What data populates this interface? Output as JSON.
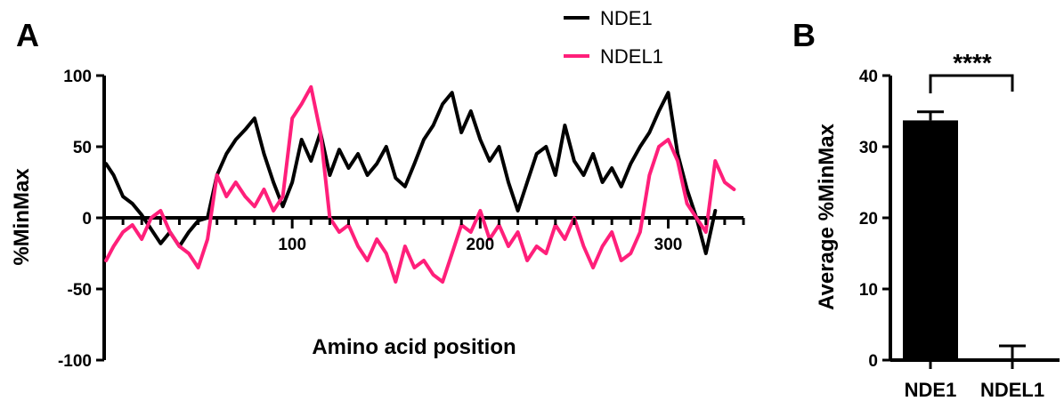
{
  "panels": {
    "a_label": "A",
    "b_label": "B"
  },
  "colors": {
    "nde1": "#000000",
    "ndel1": "#ff1f7a",
    "axis": "#000000"
  },
  "chart_data": [
    {
      "type": "line",
      "panel": "A",
      "title": "",
      "xlabel": "Amino acid position",
      "ylabel": "%MinMax",
      "xlim": [
        0,
        340
      ],
      "ylim": [
        -100,
        100
      ],
      "x_ticks": [
        100,
        200,
        300
      ],
      "y_ticks": [
        -100,
        -50,
        0,
        50,
        100
      ],
      "legend": {
        "position": "top-right"
      },
      "series": [
        {
          "name": "NDE1",
          "x": [
            1,
            5,
            10,
            15,
            20,
            25,
            30,
            35,
            40,
            45,
            50,
            55,
            60,
            65,
            70,
            75,
            80,
            85,
            90,
            95,
            100,
            105,
            110,
            115,
            120,
            125,
            130,
            135,
            140,
            145,
            150,
            155,
            160,
            165,
            170,
            175,
            180,
            185,
            190,
            195,
            200,
            205,
            210,
            215,
            220,
            225,
            230,
            235,
            240,
            245,
            250,
            255,
            260,
            265,
            270,
            275,
            280,
            285,
            290,
            295,
            300,
            305,
            310,
            315,
            320,
            325
          ],
          "y": [
            38,
            30,
            15,
            10,
            2,
            -8,
            -18,
            -10,
            -20,
            -10,
            -2,
            0,
            30,
            45,
            55,
            62,
            70,
            45,
            25,
            8,
            25,
            55,
            40,
            60,
            30,
            48,
            35,
            45,
            30,
            38,
            50,
            28,
            22,
            38,
            55,
            65,
            80,
            88,
            60,
            75,
            55,
            40,
            50,
            25,
            5,
            25,
            45,
            50,
            30,
            65,
            40,
            30,
            45,
            25,
            35,
            22,
            38,
            50,
            60,
            75,
            88,
            45,
            20,
            0,
            -25,
            5
          ]
        },
        {
          "name": "NDEL1",
          "x": [
            1,
            5,
            10,
            15,
            20,
            25,
            30,
            35,
            40,
            45,
            50,
            55,
            60,
            65,
            70,
            75,
            80,
            85,
            90,
            95,
            100,
            105,
            110,
            115,
            120,
            125,
            130,
            135,
            140,
            145,
            150,
            155,
            160,
            165,
            170,
            175,
            180,
            185,
            190,
            195,
            200,
            205,
            210,
            215,
            220,
            225,
            230,
            235,
            240,
            245,
            250,
            255,
            260,
            265,
            270,
            275,
            280,
            285,
            290,
            295,
            300,
            305,
            310,
            315,
            320,
            325,
            330,
            335
          ],
          "y": [
            -30,
            -20,
            -10,
            -5,
            -15,
            0,
            5,
            -10,
            -20,
            -25,
            -35,
            -15,
            30,
            15,
            25,
            15,
            8,
            20,
            5,
            15,
            70,
            80,
            92,
            60,
            0,
            -10,
            -5,
            -20,
            -30,
            -15,
            -25,
            -45,
            -20,
            -35,
            -30,
            -40,
            -45,
            -25,
            -5,
            -10,
            5,
            -15,
            -5,
            -20,
            -10,
            -30,
            -20,
            -25,
            -5,
            -15,
            0,
            -20,
            -35,
            -20,
            -10,
            -30,
            -25,
            -10,
            30,
            50,
            55,
            40,
            10,
            0,
            -10,
            40,
            25,
            20
          ]
        }
      ]
    },
    {
      "type": "bar",
      "panel": "B",
      "title": "",
      "xlabel": "",
      "ylabel": "Average %MinMax",
      "ylim": [
        0,
        40
      ],
      "y_ticks": [
        0,
        10,
        20,
        30,
        40
      ],
      "categories": [
        "NDE1",
        "NDEL1"
      ],
      "values": [
        33.7,
        0.2
      ],
      "error": [
        1.2,
        1.8
      ],
      "significance": "****"
    }
  ]
}
